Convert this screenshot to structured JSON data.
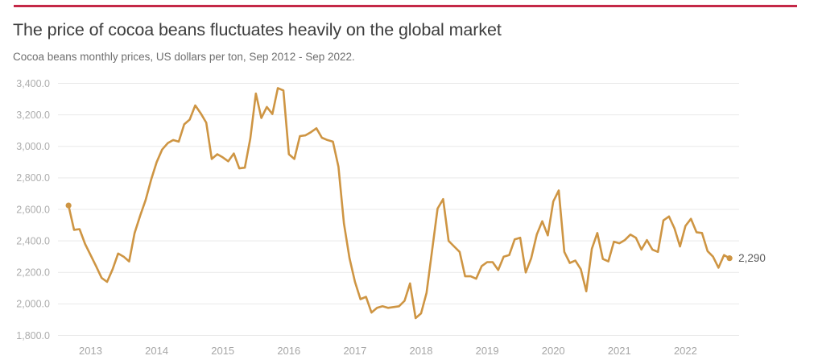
{
  "header": {
    "title": "The price of cocoa beans fluctuates heavily on the global market",
    "subtitle": "Cocoa beans monthly prices, US dollars per ton, Sep 2012 - Sep 2022."
  },
  "colors": {
    "accent_bar": "#C42847",
    "line": "#CE9543",
    "grid": "#E9E9E9",
    "y_tick_text": "#ADADAD",
    "x_tick_text": "#A6A6A6",
    "title_text": "#3D3D3D",
    "subtitle_text": "#6E6E6E",
    "end_label_text": "#5C5C5C",
    "background": "#FFFFFF"
  },
  "chart_data": {
    "type": "line",
    "title": "The price of cocoa beans fluctuates heavily on the global market",
    "subtitle": "Cocoa beans monthly prices, US dollars per ton, Sep 2012 - Sep 2022.",
    "unit": "US dollars per ton",
    "x_range": [
      "Sep 2012",
      "Sep 2022"
    ],
    "interval": "monthly",
    "ylim": [
      1800,
      3400
    ],
    "grid": "horizontal",
    "legend": "none",
    "markers": "first-and-last-point",
    "end_label": "2,290",
    "y_ticks": [
      {
        "value": 3400,
        "label": "3,400.0"
      },
      {
        "value": 3200,
        "label": "3,200.0"
      },
      {
        "value": 3000,
        "label": "3,000.0"
      },
      {
        "value": 2800,
        "label": "2,800.0"
      },
      {
        "value": 2600,
        "label": "2,600.0"
      },
      {
        "value": 2400,
        "label": "2,400.0"
      },
      {
        "value": 2200,
        "label": "2,200.0"
      },
      {
        "value": 2000,
        "label": "2,000.0"
      },
      {
        "value": 1800,
        "label": "1,800.0"
      }
    ],
    "x_tick_labels": [
      "2013",
      "2014",
      "2015",
      "2016",
      "2017",
      "2018",
      "2019",
      "2020",
      "2021",
      "2022"
    ],
    "series": [
      {
        "name": "Cocoa beans monthly price (USD per ton)",
        "start": "2012-09",
        "values": [
          2625,
          2470,
          2475,
          2380,
          2310,
          2240,
          2165,
          2140,
          2220,
          2320,
          2300,
          2270,
          2450,
          2560,
          2660,
          2790,
          2900,
          2980,
          3020,
          3040,
          3030,
          3140,
          3170,
          3260,
          3210,
          3150,
          2920,
          2950,
          2930,
          2905,
          2955,
          2860,
          2865,
          3050,
          3335,
          3180,
          3250,
          3205,
          3370,
          3355,
          2950,
          2920,
          3065,
          3070,
          3090,
          3115,
          3055,
          3040,
          3030,
          2870,
          2510,
          2290,
          2140,
          2030,
          2045,
          1945,
          1975,
          1985,
          1975,
          1980,
          1985,
          2020,
          2130,
          1910,
          1940,
          2070,
          2340,
          2605,
          2665,
          2400,
          2365,
          2330,
          2175,
          2175,
          2160,
          2240,
          2265,
          2265,
          2215,
          2300,
          2310,
          2410,
          2420,
          2200,
          2290,
          2440,
          2525,
          2435,
          2650,
          2720,
          2330,
          2260,
          2275,
          2220,
          2080,
          2350,
          2450,
          2285,
          2270,
          2395,
          2385,
          2405,
          2440,
          2420,
          2345,
          2405,
          2345,
          2330,
          2530,
          2555,
          2480,
          2365,
          2495,
          2540,
          2455,
          2450,
          2335,
          2300,
          2230,
          2310,
          2290
        ]
      }
    ]
  }
}
